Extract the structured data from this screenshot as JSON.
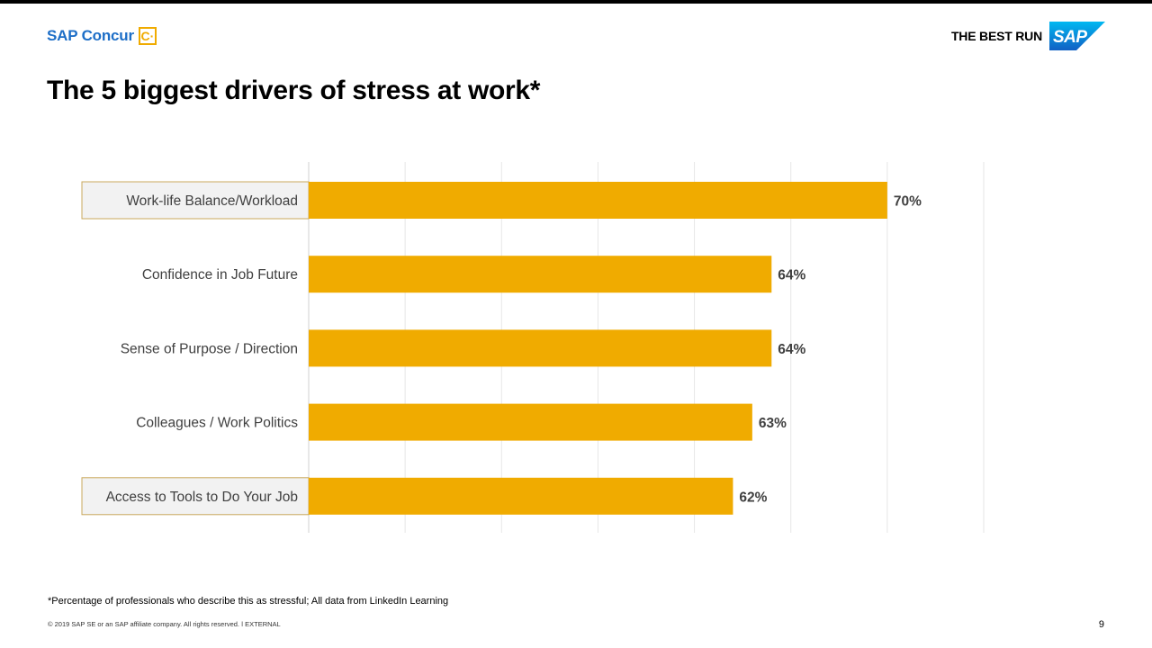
{
  "brand": {
    "left_logo_text": "SAP Concur",
    "left_logo_mark": "C·",
    "right_tagline": "THE BEST RUN",
    "right_logo_text": "SAP",
    "colors": {
      "concur_blue": "#1d6ec7",
      "concur_gold": "#f0ab00",
      "sap_blue": "#1a8ae0"
    }
  },
  "slide": {
    "title": "The 5 biggest drivers of stress at work*",
    "footnote": "*Percentage of professionals who describe this as stressful; All data from LinkedIn Learning",
    "copyright": "© 2019 SAP SE or an SAP affiliate company. All rights reserved.  ǀ  EXTERNAL",
    "page_number": "9"
  },
  "chart_data": {
    "type": "bar",
    "orientation": "horizontal",
    "categories": [
      "Work-life Balance/Workload",
      "Confidence in Job Future",
      "Sense of Purpose / Direction",
      "Colleagues / Work Politics",
      "Access to Tools to Do Your Job"
    ],
    "values": [
      70,
      64,
      64,
      63,
      62
    ],
    "value_labels": [
      "70%",
      "64%",
      "64%",
      "63%",
      "62%"
    ],
    "highlighted": [
      true,
      false,
      false,
      false,
      true
    ],
    "xlim": [
      40,
      75
    ],
    "grid": true,
    "bar_color": "#f0ab00",
    "highlight_fill": "#f2f2f2",
    "highlight_border": "#c9a85c"
  }
}
